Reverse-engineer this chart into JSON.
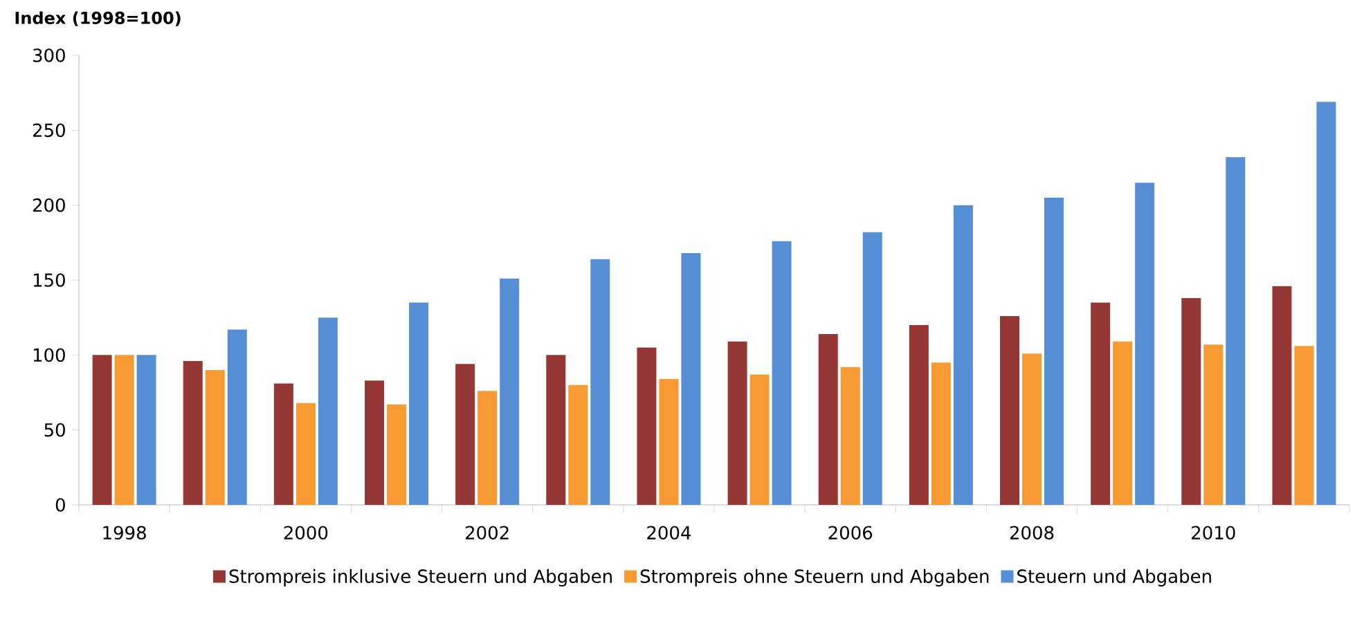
{
  "chart_data": {
    "type": "bar",
    "title": "Index (1998=100)",
    "categories": [
      "1998",
      null,
      "2000",
      null,
      "2002",
      null,
      "2004",
      null,
      "2006",
      null,
      "2008",
      null,
      "2010",
      null
    ],
    "series": [
      {
        "name": "Strompreis inklusive Steuern und Abgaben",
        "color": "#953735",
        "values": [
          100,
          96,
          81,
          83,
          94,
          100,
          105,
          109,
          114,
          120,
          126,
          135,
          138,
          146
        ]
      },
      {
        "name": "Strompreis ohne Steuern und Abgaben",
        "color": "#f79a33",
        "values": [
          100,
          90,
          68,
          67,
          76,
          80,
          84,
          87,
          92,
          95,
          101,
          109,
          107,
          106
        ]
      },
      {
        "name": "Steuern und Abgaben",
        "color": "#558ed5",
        "values": [
          100,
          117,
          125,
          135,
          151,
          164,
          168,
          176,
          182,
          200,
          205,
          215,
          232,
          269
        ]
      }
    ],
    "ylim": [
      0,
      300
    ],
    "yticks": [
      0,
      50,
      100,
      150,
      200,
      250,
      300
    ],
    "grid": false,
    "legend": "bottom"
  }
}
